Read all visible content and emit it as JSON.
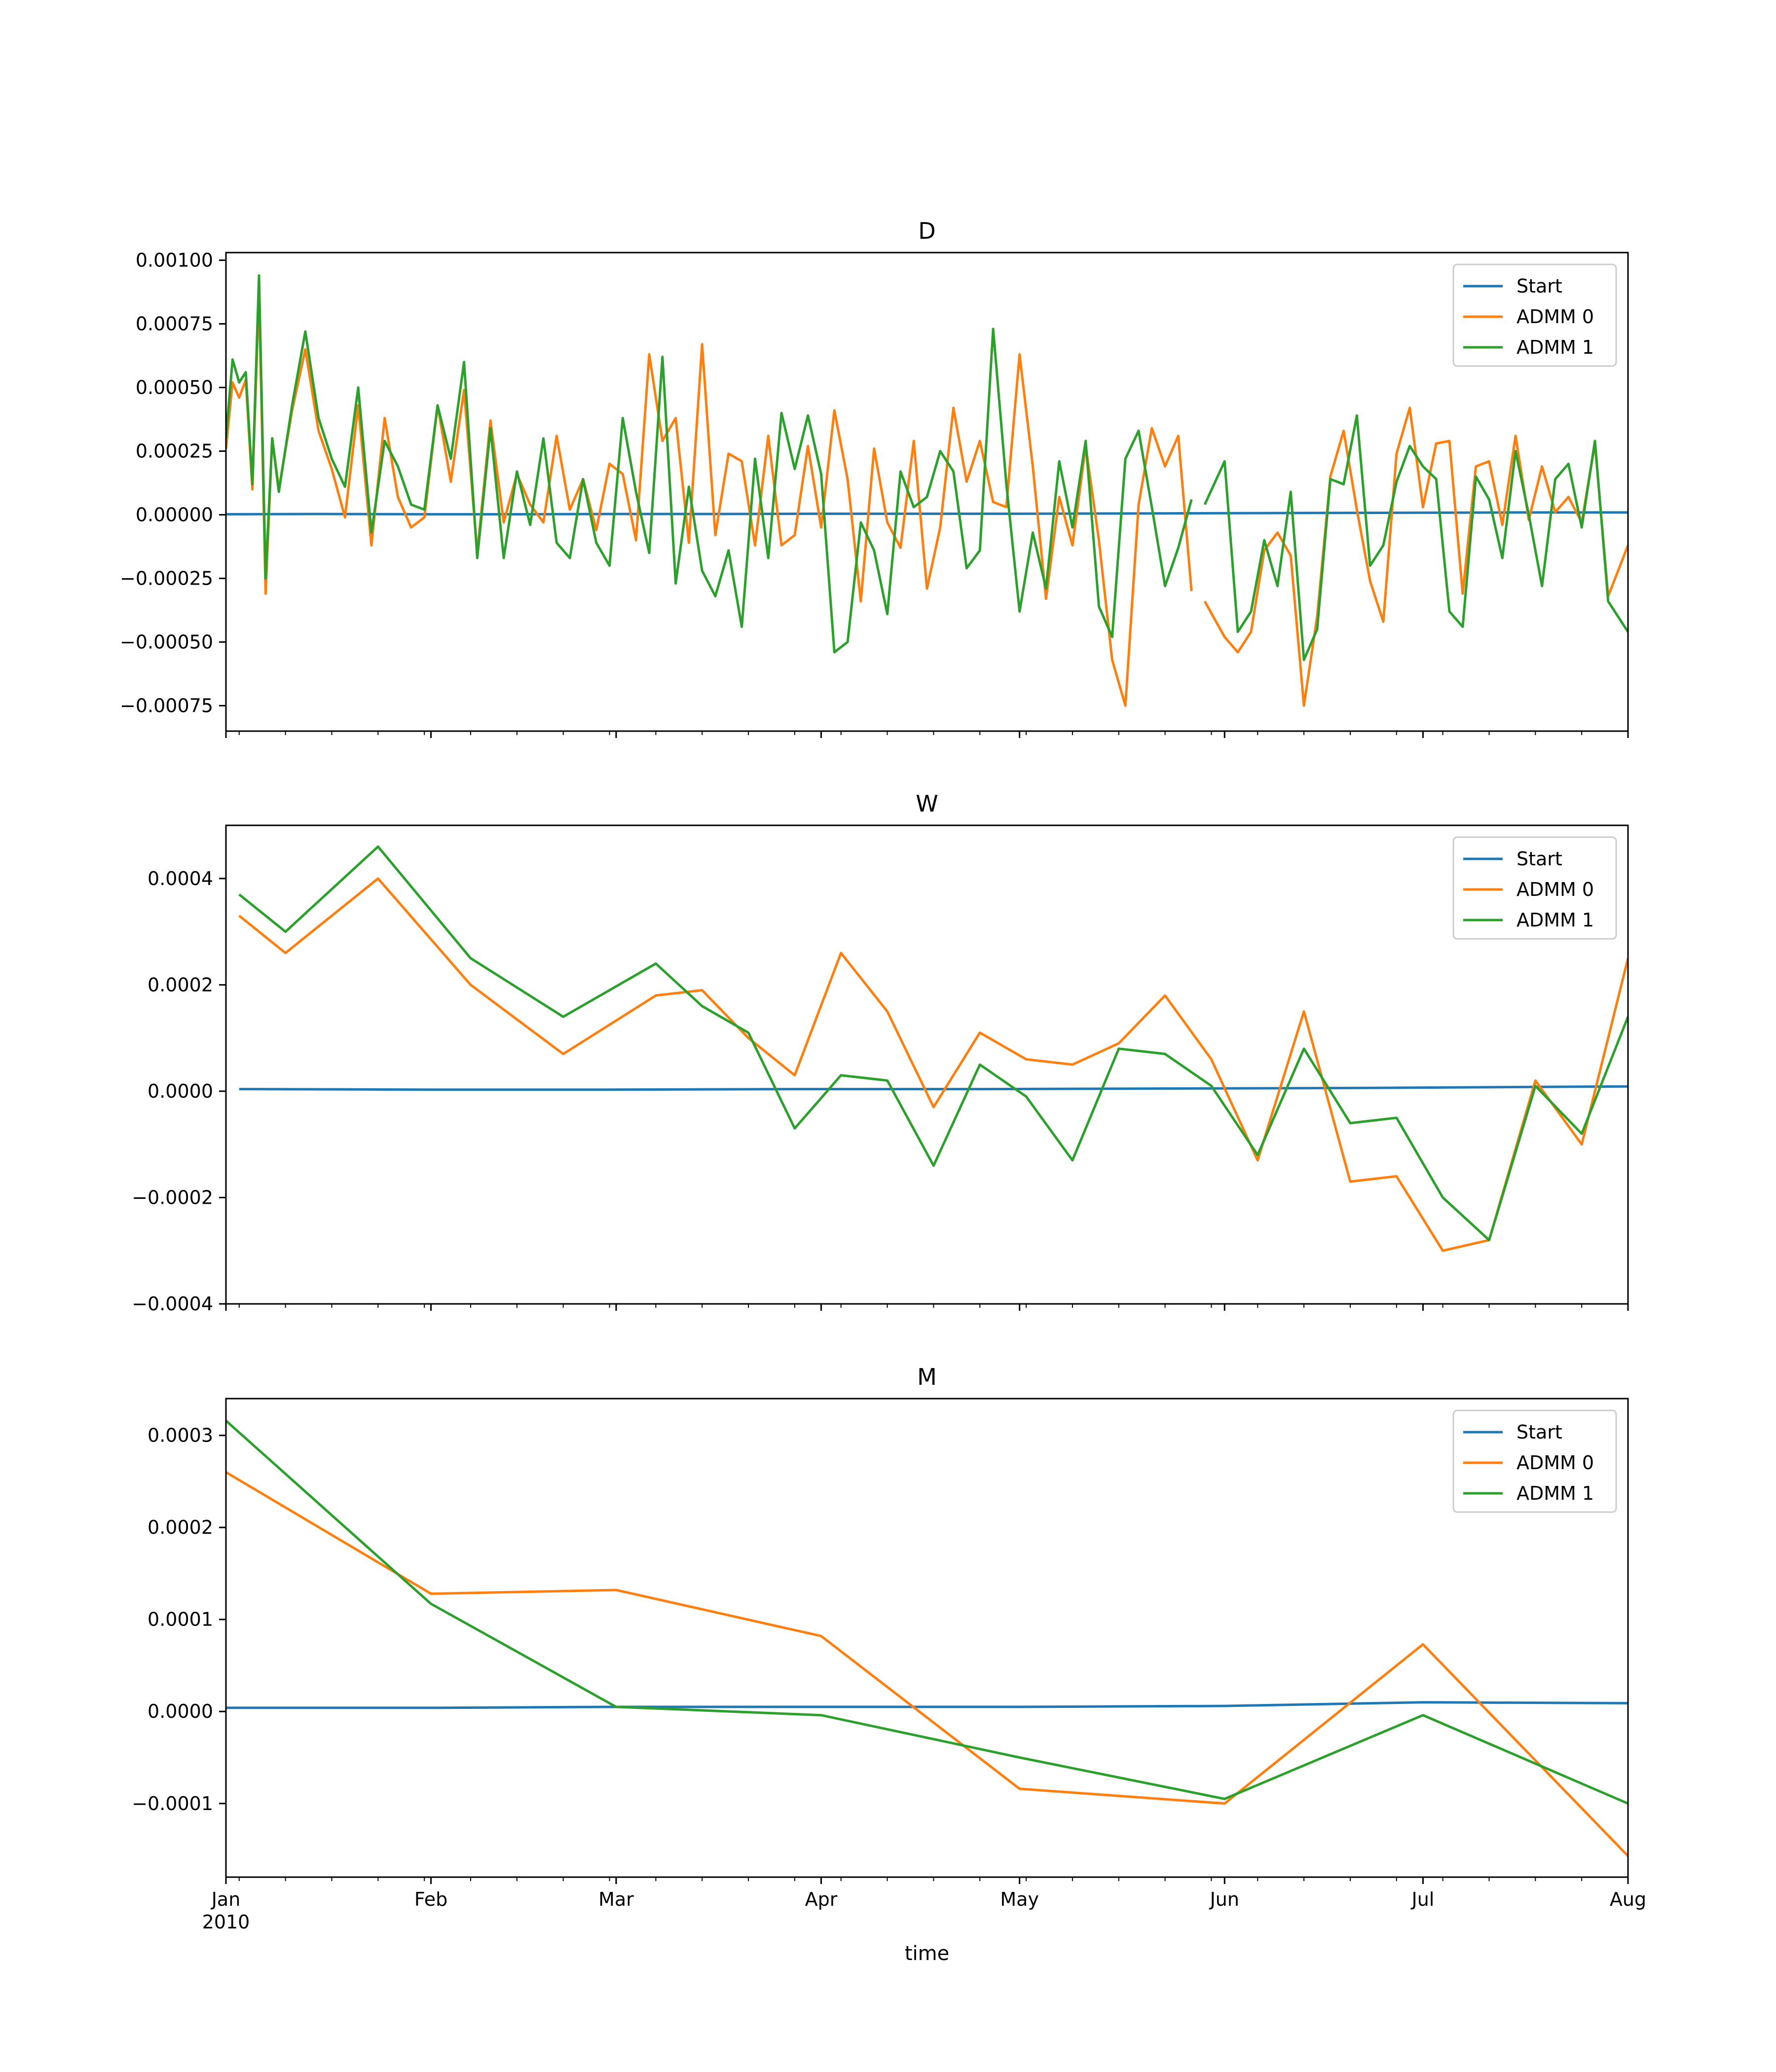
{
  "chart_data": [
    {
      "type": "line",
      "title": "D",
      "ylim": [
        -0.00085,
        0.00103
      ],
      "xlim": [
        "2010-01-01",
        "2010-08-01"
      ],
      "yticks": [
        -0.00075,
        -0.0005,
        -0.00025,
        0,
        0.00025,
        0.0005,
        0.00075,
        0.001
      ],
      "ytick_labels": [
        "−0.00075",
        "−0.00050",
        "−0.00025",
        "0.00000",
        "0.00025",
        "0.00050",
        "0.00075",
        "0.00100"
      ],
      "legend": "top-right",
      "grid": false,
      "series": [
        {
          "name": "Start",
          "color": "#1f77b4",
          "x": [
            "2010-01-01",
            "2010-01-15",
            "2010-02-01",
            "2010-02-15",
            "2010-03-01",
            "2010-03-15",
            "2010-04-01",
            "2010-04-15",
            "2010-05-01",
            "2010-05-15",
            "2010-06-01",
            "2010-06-15",
            "2010-07-01",
            "2010-07-15",
            "2010-08-01"
          ],
          "y": [
            2e-06,
            3e-06,
            2e-06,
            2e-06,
            3e-06,
            3e-06,
            4e-06,
            4e-06,
            4e-06,
            5e-06,
            6e-06,
            7e-06,
            8e-06,
            9e-06,
            9e-06
          ]
        },
        {
          "name": "ADMM 0",
          "color": "#ff7f0e",
          "x": [
            "2010-01-01",
            "2010-01-02",
            "2010-01-03",
            "2010-01-04",
            "2010-01-05",
            "2010-01-06",
            "2010-01-07",
            "2010-01-08",
            "2010-01-09",
            "2010-01-11",
            "2010-01-13",
            "2010-01-15",
            "2010-01-17",
            "2010-01-19",
            "2010-01-21",
            "2010-01-23",
            "2010-01-25",
            "2010-01-27",
            "2010-01-29",
            "2010-01-31",
            "2010-02-02",
            "2010-02-04",
            "2010-02-06",
            "2010-02-08",
            "2010-02-10",
            "2010-02-12",
            "2010-02-14",
            "2010-02-16",
            "2010-02-18",
            "2010-02-20",
            "2010-02-22",
            "2010-02-24",
            "2010-02-26",
            "2010-02-28",
            "2010-03-02",
            "2010-03-04",
            "2010-03-06",
            "2010-03-08",
            "2010-03-10",
            "2010-03-12",
            "2010-03-14",
            "2010-03-16",
            "2010-03-18",
            "2010-03-20",
            "2010-03-22",
            "2010-03-24",
            "2010-03-26",
            "2010-03-28",
            "2010-03-30",
            "2010-04-01",
            "2010-04-03",
            "2010-04-05",
            "2010-04-07",
            "2010-04-09",
            "2010-04-11",
            "2010-04-13",
            "2010-04-15",
            "2010-04-17",
            "2010-04-19",
            "2010-04-21",
            "2010-04-23",
            "2010-04-25",
            "2010-04-27",
            "2010-04-29",
            "2010-05-01",
            "2010-05-03",
            "2010-05-05",
            "2010-05-07",
            "2010-05-09",
            "2010-05-11",
            "2010-05-13",
            "2010-05-15",
            "2010-05-17",
            "2010-05-19",
            "2010-05-21",
            "2010-05-23",
            "2010-05-25",
            "2010-05-27",
            "2010-05-29",
            "2010-06-01",
            "2010-06-03",
            "2010-06-05",
            "2010-06-07",
            "2010-06-09",
            "2010-06-11",
            "2010-06-13",
            "2010-06-15",
            "2010-06-17",
            "2010-06-19",
            "2010-06-21",
            "2010-06-23",
            "2010-06-25",
            "2010-06-27",
            "2010-06-29",
            "2010-07-01",
            "2010-07-03",
            "2010-07-05",
            "2010-07-07",
            "2010-07-09",
            "2010-07-11",
            "2010-07-13",
            "2010-07-15",
            "2010-07-17",
            "2010-07-19",
            "2010-07-21",
            "2010-07-23",
            "2010-07-25",
            "2010-07-27",
            "2010-07-29",
            "2010-08-01"
          ],
          "y": [
            0.00026,
            0.00052,
            0.00046,
            0.00053,
            0.0001,
            0.00088,
            -0.00031,
            0.0003,
            0.0001,
            0.00041,
            0.00065,
            0.00033,
            0.00018,
            -1e-05,
            0.00043,
            -0.00012,
            0.00038,
            7e-05,
            -5e-05,
            -1e-05,
            0.00043,
            0.00013,
            0.00049,
            -0.00015,
            0.00037,
            -3e-05,
            0.00016,
            4e-05,
            -3e-05,
            0.00031,
            2e-05,
            0.00014,
            -6e-05,
            0.0002,
            0.00016,
            -0.0001,
            0.00063,
            0.00029,
            0.00038,
            -0.00011,
            0.00067,
            -8e-05,
            0.00024,
            0.00021,
            -0.00012,
            0.00031,
            -0.00012,
            -8e-05,
            0.00027,
            -5e-05,
            0.00041,
            0.00014,
            -0.00034,
            0.00026,
            -3e-05,
            -0.00013,
            0.00029,
            -0.00029,
            -5e-05,
            0.00042,
            0.00013,
            0.00029,
            5e-05,
            3e-05,
            0.00063,
            0.00019,
            -0.00033,
            7e-05,
            -0.00012,
            0.00027,
            -0.0001,
            -0.00057,
            -0.00075,
            4e-05,
            0.00034,
            0.00019,
            0.00031,
            -0.0003,
            -0.00034,
            -0.00048,
            -0.00054,
            -0.00046,
            -0.00014,
            -7e-05,
            -0.00016,
            -0.00075,
            -0.0004,
            0.00015,
            0.00033,
            2e-05,
            -0.00026,
            -0.00042,
            0.00024,
            0.00042,
            3e-05,
            0.00028,
            0.00029,
            -0.00031,
            0.00019,
            0.00021,
            -4e-05,
            0.00031,
            -2e-05,
            0.00019,
            1e-05,
            7e-05,
            -3e-05,
            0.00028,
            -0.00032,
            -0.00012
          ],
          "gaps_after": [
            "2010-05-27"
          ]
        },
        {
          "name": "ADMM 1",
          "color": "#2ca02c",
          "x": [
            "2010-01-01",
            "2010-01-02",
            "2010-01-03",
            "2010-01-04",
            "2010-01-05",
            "2010-01-06",
            "2010-01-07",
            "2010-01-08",
            "2010-01-09",
            "2010-01-11",
            "2010-01-13",
            "2010-01-15",
            "2010-01-17",
            "2010-01-19",
            "2010-01-21",
            "2010-01-23",
            "2010-01-25",
            "2010-01-27",
            "2010-01-29",
            "2010-01-31",
            "2010-02-02",
            "2010-02-04",
            "2010-02-06",
            "2010-02-08",
            "2010-02-10",
            "2010-02-12",
            "2010-02-14",
            "2010-02-16",
            "2010-02-18",
            "2010-02-20",
            "2010-02-22",
            "2010-02-24",
            "2010-02-26",
            "2010-02-28",
            "2010-03-02",
            "2010-03-04",
            "2010-03-06",
            "2010-03-08",
            "2010-03-10",
            "2010-03-12",
            "2010-03-14",
            "2010-03-16",
            "2010-03-18",
            "2010-03-20",
            "2010-03-22",
            "2010-03-24",
            "2010-03-26",
            "2010-03-28",
            "2010-03-30",
            "2010-04-01",
            "2010-04-03",
            "2010-04-05",
            "2010-04-07",
            "2010-04-09",
            "2010-04-11",
            "2010-04-13",
            "2010-04-15",
            "2010-04-17",
            "2010-04-19",
            "2010-04-21",
            "2010-04-23",
            "2010-04-25",
            "2010-04-27",
            "2010-04-29",
            "2010-05-01",
            "2010-05-03",
            "2010-05-05",
            "2010-05-07",
            "2010-05-09",
            "2010-05-11",
            "2010-05-13",
            "2010-05-15",
            "2010-05-17",
            "2010-05-19",
            "2010-05-21",
            "2010-05-23",
            "2010-05-25",
            "2010-05-27",
            "2010-05-29",
            "2010-06-01",
            "2010-06-03",
            "2010-06-05",
            "2010-06-07",
            "2010-06-09",
            "2010-06-11",
            "2010-06-13",
            "2010-06-15",
            "2010-06-17",
            "2010-06-19",
            "2010-06-21",
            "2010-06-23",
            "2010-06-25",
            "2010-06-27",
            "2010-06-29",
            "2010-07-01",
            "2010-07-03",
            "2010-07-05",
            "2010-07-07",
            "2010-07-09",
            "2010-07-11",
            "2010-07-13",
            "2010-07-15",
            "2010-07-17",
            "2010-07-19",
            "2010-07-21",
            "2010-07-23",
            "2010-07-25",
            "2010-07-27",
            "2010-07-29",
            "2010-08-01"
          ],
          "y": [
            0.0003,
            0.00061,
            0.00052,
            0.00056,
            0.00012,
            0.00094,
            -0.00025,
            0.0003,
            9e-05,
            0.00043,
            0.00072,
            0.00038,
            0.00022,
            0.00011,
            0.0005,
            -7e-05,
            0.00029,
            0.00019,
            4e-05,
            2e-05,
            0.00043,
            0.00022,
            0.0006,
            -0.00017,
            0.00034,
            -0.00017,
            0.00017,
            -4e-05,
            0.0003,
            -0.00011,
            -0.00017,
            0.00014,
            -0.00011,
            -0.0002,
            0.00038,
            9e-05,
            -0.00015,
            0.00062,
            -0.00027,
            0.00011,
            -0.00022,
            -0.00032,
            -0.00014,
            -0.00044,
            0.00022,
            -0.00017,
            0.0004,
            0.00018,
            0.00039,
            0.00016,
            -0.00054,
            -0.0005,
            -3e-05,
            -0.00014,
            -0.00039,
            0.00017,
            3e-05,
            7e-05,
            0.00025,
            0.00017,
            -0.00021,
            -0.00014,
            0.00073,
            0.00012,
            -0.00038,
            -7e-05,
            -0.00029,
            0.00021,
            -5e-05,
            0.00029,
            -0.00036,
            -0.00048,
            0.00022,
            0.00033,
            3e-05,
            -0.00028,
            -0.00013,
            6e-05,
            4e-05,
            0.00021,
            -0.00046,
            -0.00038,
            -0.0001,
            -0.00028,
            9e-05,
            -0.00057,
            -0.00045,
            0.00014,
            0.00012,
            0.00039,
            -0.0002,
            -0.00012,
            0.00013,
            0.00027,
            0.00019,
            0.00014,
            -0.00038,
            -0.00044,
            0.00015,
            6e-05,
            -0.00017,
            0.00025,
            0.0,
            -0.00028,
            0.00014,
            0.0002,
            -5e-05,
            0.00029,
            -0.00034,
            -0.00046
          ],
          "gaps_after": [
            "2010-05-27"
          ]
        }
      ]
    },
    {
      "type": "line",
      "title": "W",
      "ylim": [
        -0.0004,
        0.0005
      ],
      "xlim": [
        "2010-01-01",
        "2010-08-01"
      ],
      "yticks": [
        -0.0004,
        -0.0002,
        0,
        0.0002,
        0.0004
      ],
      "ytick_labels": [
        "−0.0004",
        "−0.0002",
        "0.0000",
        "0.0002",
        "0.0004"
      ],
      "legend": "top-right",
      "grid": false,
      "series": [
        {
          "name": "Start",
          "color": "#1f77b4",
          "x": [
            "2010-01-03",
            "2010-01-31",
            "2010-02-28",
            "2010-03-28",
            "2010-04-25",
            "2010-05-23",
            "2010-06-20",
            "2010-07-18",
            "2010-08-01"
          ],
          "y": [
            4e-06,
            3e-06,
            3e-06,
            4e-06,
            4e-06,
            5e-06,
            6e-06,
            8e-06,
            9e-06
          ]
        },
        {
          "name": "ADMM 0",
          "color": "#ff7f0e",
          "x": [
            "2010-01-03",
            "2010-01-10",
            "2010-01-24",
            "2010-02-07",
            "2010-02-21",
            "2010-03-07",
            "2010-03-14",
            "2010-03-21",
            "2010-03-28",
            "2010-04-04",
            "2010-04-11",
            "2010-04-18",
            "2010-04-25",
            "2010-05-02",
            "2010-05-09",
            "2010-05-16",
            "2010-05-23",
            "2010-05-30",
            "2010-06-06",
            "2010-06-13",
            "2010-06-20",
            "2010-06-27",
            "2010-07-04",
            "2010-07-11",
            "2010-07-18",
            "2010-07-25",
            "2010-08-01"
          ],
          "y": [
            0.00033,
            0.00026,
            0.0004,
            0.0002,
            7e-05,
            0.00018,
            0.00019,
            0.0001,
            3e-05,
            0.00026,
            0.00015,
            -3e-05,
            0.00011,
            6e-05,
            5e-05,
            9e-05,
            0.00018,
            6e-05,
            -0.00013,
            0.00015,
            -0.00017,
            -0.00016,
            -0.0003,
            -0.00028,
            2e-05,
            -0.0001,
            0.00025
          ]
        },
        {
          "name": "ADMM 1",
          "color": "#2ca02c",
          "x": [
            "2010-01-03",
            "2010-01-10",
            "2010-01-24",
            "2010-02-07",
            "2010-02-21",
            "2010-03-07",
            "2010-03-14",
            "2010-03-21",
            "2010-03-28",
            "2010-04-04",
            "2010-04-11",
            "2010-04-18",
            "2010-04-25",
            "2010-05-02",
            "2010-05-09",
            "2010-05-16",
            "2010-05-23",
            "2010-05-30",
            "2010-06-06",
            "2010-06-13",
            "2010-06-20",
            "2010-06-27",
            "2010-07-04",
            "2010-07-11",
            "2010-07-18",
            "2010-07-25",
            "2010-08-01"
          ],
          "y": [
            0.00037,
            0.0003,
            0.00046,
            0.00025,
            0.00014,
            0.00024,
            0.00016,
            0.00011,
            -7e-05,
            3e-05,
            2e-05,
            -0.00014,
            5e-05,
            -1e-05,
            -0.00013,
            8e-05,
            7e-05,
            1e-05,
            -0.00012,
            8e-05,
            -6e-05,
            -5e-05,
            -0.0002,
            -0.00028,
            1e-05,
            -8e-05,
            0.00014
          ]
        }
      ]
    },
    {
      "type": "line",
      "title": "M",
      "xlabel": "time",
      "ylim": [
        -0.00018,
        0.00034
      ],
      "xlim": [
        "2010-01-01",
        "2010-08-01"
      ],
      "yticks": [
        -0.0001,
        0,
        0.0001,
        0.0002,
        0.0003
      ],
      "ytick_labels": [
        "−0.0001",
        "0.0000",
        "0.0001",
        "0.0002",
        "0.0003"
      ],
      "legend": "top-right",
      "grid": false,
      "series": [
        {
          "name": "Start",
          "color": "#1f77b4",
          "x": [
            "2010-01-01",
            "2010-02-01",
            "2010-03-01",
            "2010-04-01",
            "2010-05-01",
            "2010-06-01",
            "2010-07-01",
            "2010-08-01"
          ],
          "y": [
            4e-06,
            4e-06,
            5e-06,
            5e-06,
            5e-06,
            6e-06,
            1e-05,
            9e-06
          ]
        },
        {
          "name": "ADMM 0",
          "color": "#ff7f0e",
          "x": [
            "2010-01-01",
            "2010-02-01",
            "2010-03-01",
            "2010-04-01",
            "2010-05-01",
            "2010-06-01",
            "2010-07-01",
            "2010-08-01"
          ],
          "y": [
            0.00026,
            0.000128,
            0.000132,
            8.2e-05,
            -8.4e-05,
            -0.0001,
            7.3e-05,
            -0.000157
          ]
        },
        {
          "name": "ADMM 1",
          "color": "#2ca02c",
          "x": [
            "2010-01-01",
            "2010-02-01",
            "2010-03-01",
            "2010-04-01",
            "2010-05-01",
            "2010-06-01",
            "2010-07-01",
            "2010-08-01"
          ],
          "y": [
            0.000316,
            0.000117,
            5e-06,
            -4e-06,
            -5e-05,
            -9.5e-05,
            -4e-06,
            -0.0001
          ]
        }
      ]
    }
  ],
  "x_axis": {
    "major_ticks": [
      "2010-01-01",
      "2010-02-01",
      "2010-03-01",
      "2010-04-01",
      "2010-05-01",
      "2010-06-01",
      "2010-07-01",
      "2010-08-01"
    ],
    "major_labels": [
      "Jan",
      "Feb",
      "Mar",
      "Apr",
      "May",
      "Jun",
      "Jul",
      "Aug"
    ],
    "year_label": "2010"
  }
}
